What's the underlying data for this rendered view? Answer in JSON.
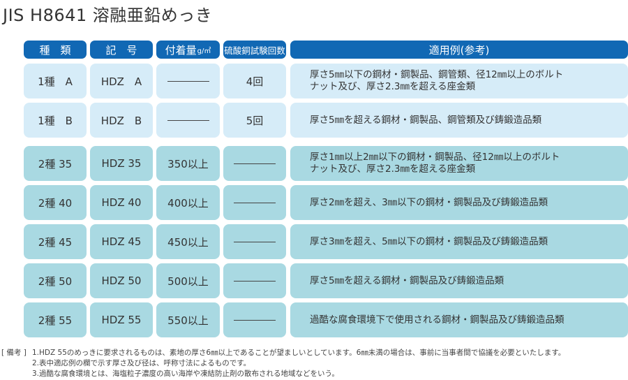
{
  "title": "JIS H8641 溶融亜鉛めっき",
  "headers": {
    "type": "種　類",
    "symbol": "記　号",
    "weight": "付着量",
    "weight_unit": "g/㎡",
    "test": "硫酸銅試験回数",
    "use": "適用例(参考)"
  },
  "rows": [
    {
      "type": "1種　A",
      "symbol": "HDZ　A",
      "weight": "",
      "test": "4回",
      "use_line1": "厚さ5㎜以下の鋼材・鋼製品、鋼管類、径12㎜以上のボルト",
      "use_line2": "ナット及び、厚さ2.3㎜を超える座金類"
    },
    {
      "type": "1種　B",
      "symbol": "HDZ　B",
      "weight": "",
      "test": "5回",
      "use_line1": "厚さ5㎜を超える鋼材・鋼製品、鋼管類及び鋳鍛造品類",
      "use_line2": ""
    },
    {
      "type": "2種 35",
      "symbol": "HDZ 35",
      "weight": "350以上",
      "test": "",
      "use_line1": "厚さ1㎜以上2㎜以下の鋼材・鋼製品、径12㎜以上のボルト",
      "use_line2": "ナット及び、厚さ2.3㎜を超える座金類"
    },
    {
      "type": "2種 40",
      "symbol": "HDZ 40",
      "weight": "400以上",
      "test": "",
      "use_line1": "厚さ2㎜を超え、3㎜以下の鋼材・鋼製品及び鋳鍛造品類",
      "use_line2": ""
    },
    {
      "type": "2種 45",
      "symbol": "HDZ 45",
      "weight": "450以上",
      "test": "",
      "use_line1": "厚さ3㎜を超え、5㎜以下の鋼材・鋼製品及び鋳鍛造品類",
      "use_line2": ""
    },
    {
      "type": "2種 50",
      "symbol": "HDZ 50",
      "weight": "500以上",
      "test": "",
      "use_line1": "厚さ5㎜を超える鋼材・鋼製品及び鋳鍛造品類",
      "use_line2": ""
    },
    {
      "type": "2種 55",
      "symbol": "HDZ 55",
      "weight": "550以上",
      "test": "",
      "use_line1": "過酷な腐食環境下で使用される鋼材・鋼製品及び鋳鍛造品類",
      "use_line2": ""
    }
  ],
  "notes": {
    "tag": "[ 備考 ]",
    "items": [
      "1.HDZ 55のめっきに要求されるものは、素地の厚さ6㎜以上であることが望ましいとしています。6㎜未満の場合は、事前に当事者間で協議を必要といたします。",
      "2.表中適応例の欄で示す厚さ及び径は、呼称寸法によるものです。",
      "3.過酷な腐食環境とは、海塩粒子濃度の高い海岸や凍結防止剤の散布される地域などをいう。"
    ]
  },
  "colors": {
    "header_bg": "#1168b4",
    "row_light": "#d6ecf8",
    "row_dark": "#a9d9e2"
  }
}
